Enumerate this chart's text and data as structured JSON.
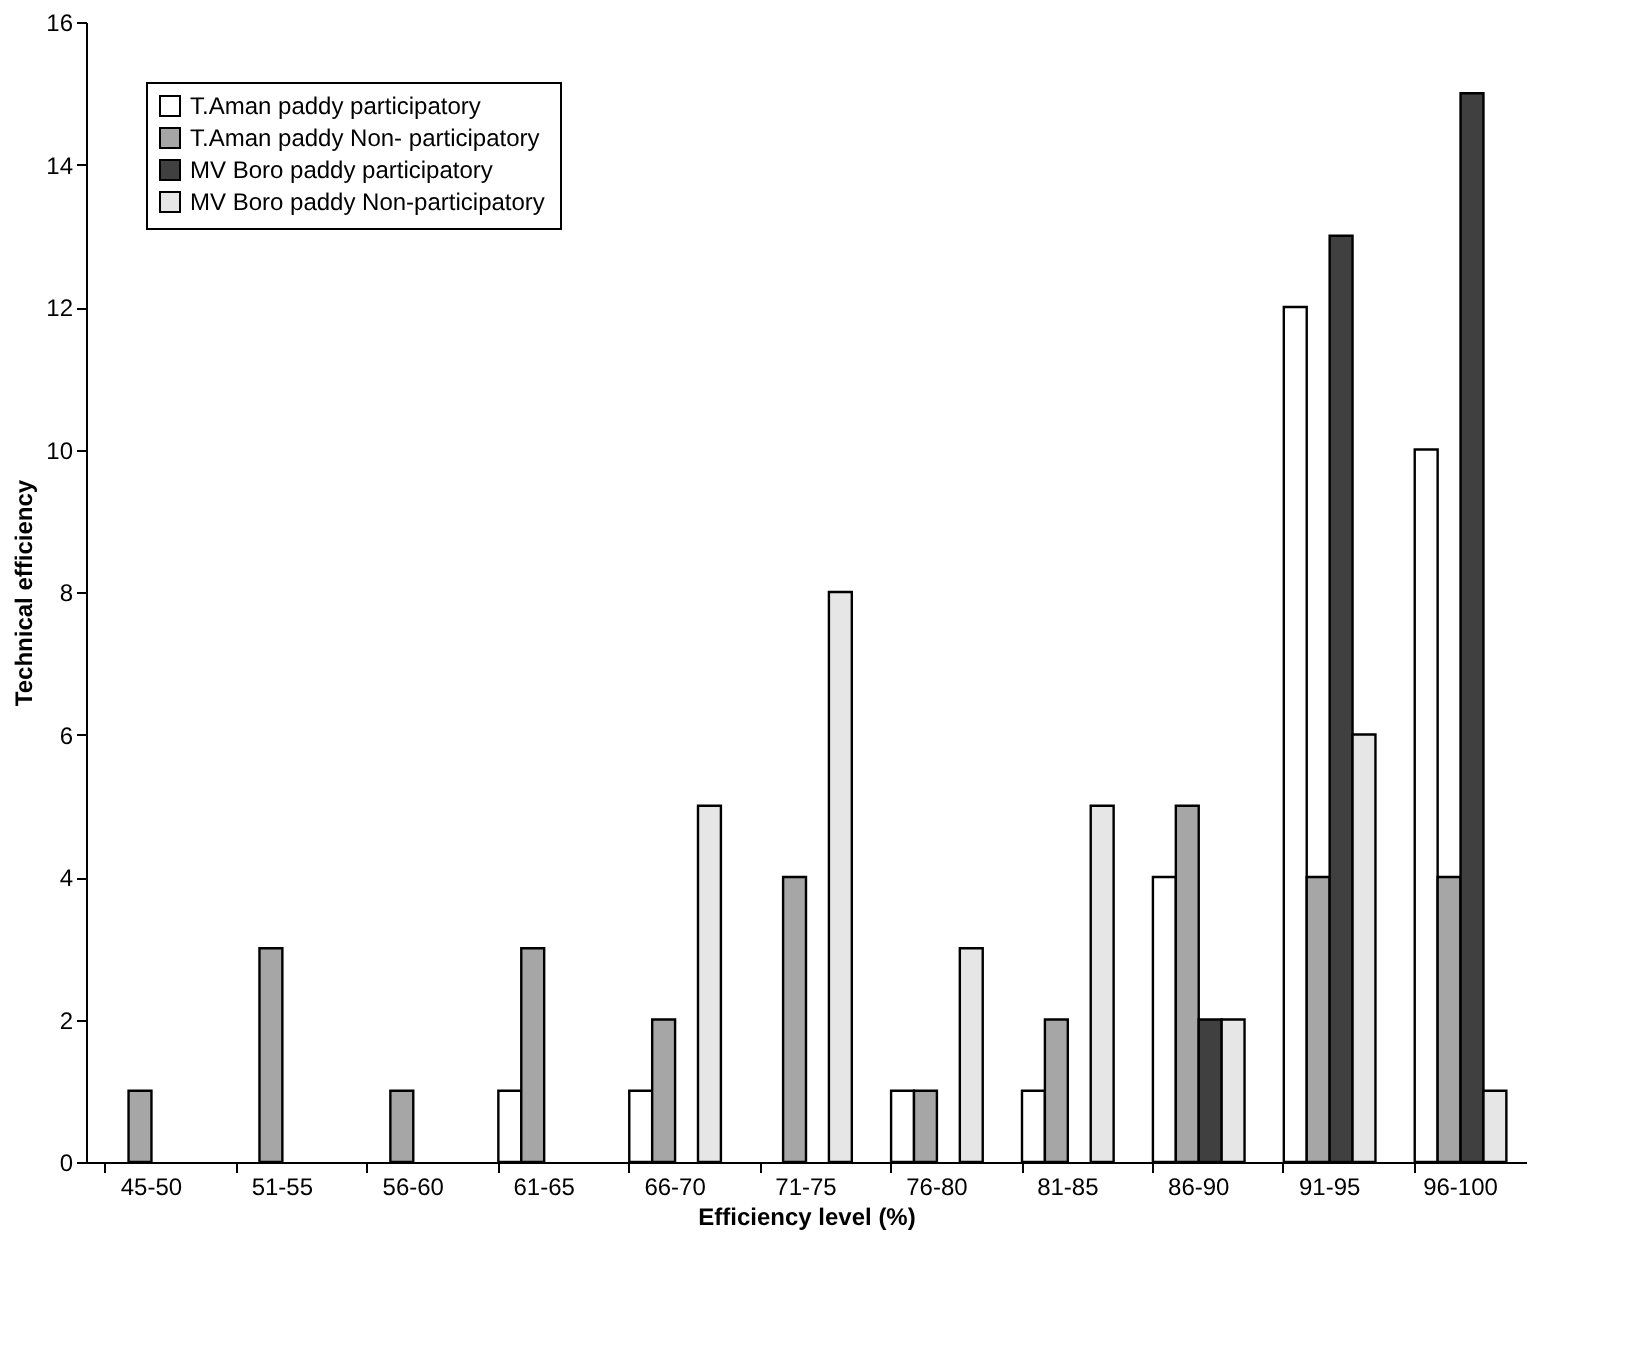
{
  "chart_data": {
    "type": "bar",
    "xlabel": "Efficiency level (%)",
    "ylabel": "Technical efficiency",
    "categories": [
      "45-50",
      "51-55",
      "56-60",
      "61-65",
      "66-70",
      "71-75",
      "76-80",
      "81-85",
      "86-90",
      "91-95",
      "96-100"
    ],
    "series": [
      {
        "name": "T.Aman paddy participatory",
        "color": "#ffffff",
        "values": [
          null,
          null,
          null,
          1,
          1,
          null,
          1,
          1,
          4,
          12,
          10
        ]
      },
      {
        "name": "T.Aman paddy  Non- participatory",
        "color": "#a6a6a6",
        "values": [
          1,
          3,
          1,
          3,
          2,
          4,
          1,
          2,
          5,
          4,
          4
        ]
      },
      {
        "name": "MV Boro paddy participatory",
        "color": "#404040",
        "values": [
          null,
          null,
          null,
          null,
          null,
          null,
          null,
          null,
          2,
          13,
          15
        ]
      },
      {
        "name": "MV Boro paddy Non-participatory",
        "color": "#e6e6e6",
        "values": [
          null,
          null,
          null,
          null,
          5,
          8,
          3,
          5,
          2,
          6,
          1
        ]
      }
    ],
    "ylim": [
      0,
      16
    ],
    "yticks": [
      0,
      2,
      4,
      6,
      8,
      10,
      12,
      14,
      16
    ],
    "grid": false,
    "legend": "top left"
  }
}
